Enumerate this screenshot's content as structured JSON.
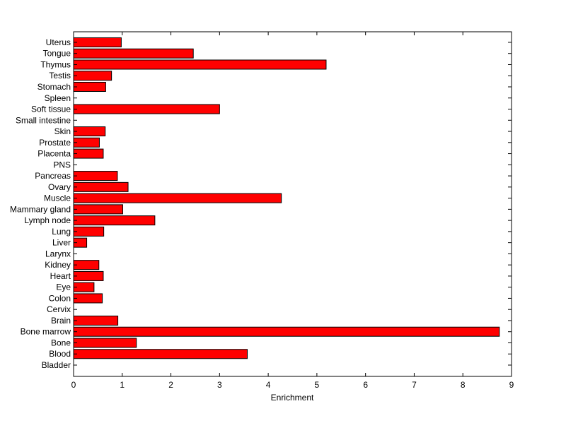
{
  "chart_data": {
    "type": "bar",
    "orientation": "horizontal",
    "xlabel": "Enrichment",
    "ylabel": "",
    "title": "",
    "xlim": [
      0,
      9
    ],
    "xticks": [
      0,
      1,
      2,
      3,
      4,
      5,
      6,
      7,
      8,
      9
    ],
    "grid": false,
    "bar_color": "#ff0000",
    "categories": [
      "Bladder",
      "Blood",
      "Bone",
      "Bone marrow",
      "Brain",
      "Cervix",
      "Colon",
      "Eye",
      "Heart",
      "Kidney",
      "Larynx",
      "Liver",
      "Lung",
      "Lymph node",
      "Mammary gland",
      "Muscle",
      "Ovary",
      "Pancreas",
      "PNS",
      "Placenta",
      "Prostate",
      "Skin",
      "Small intestine",
      "Soft tissue",
      "Spleen",
      "Stomach",
      "Testis",
      "Thymus",
      "Tongue",
      "Uterus"
    ],
    "values": [
      0,
      3.57,
      1.29,
      8.75,
      0.91,
      0,
      0.59,
      0.42,
      0.61,
      0.52,
      0,
      0.27,
      0.62,
      1.67,
      1.01,
      4.27,
      1.12,
      0.9,
      0,
      0.61,
      0.53,
      0.65,
      0,
      3.0,
      0,
      0.66,
      0.78,
      5.19,
      2.46,
      0.98
    ]
  }
}
